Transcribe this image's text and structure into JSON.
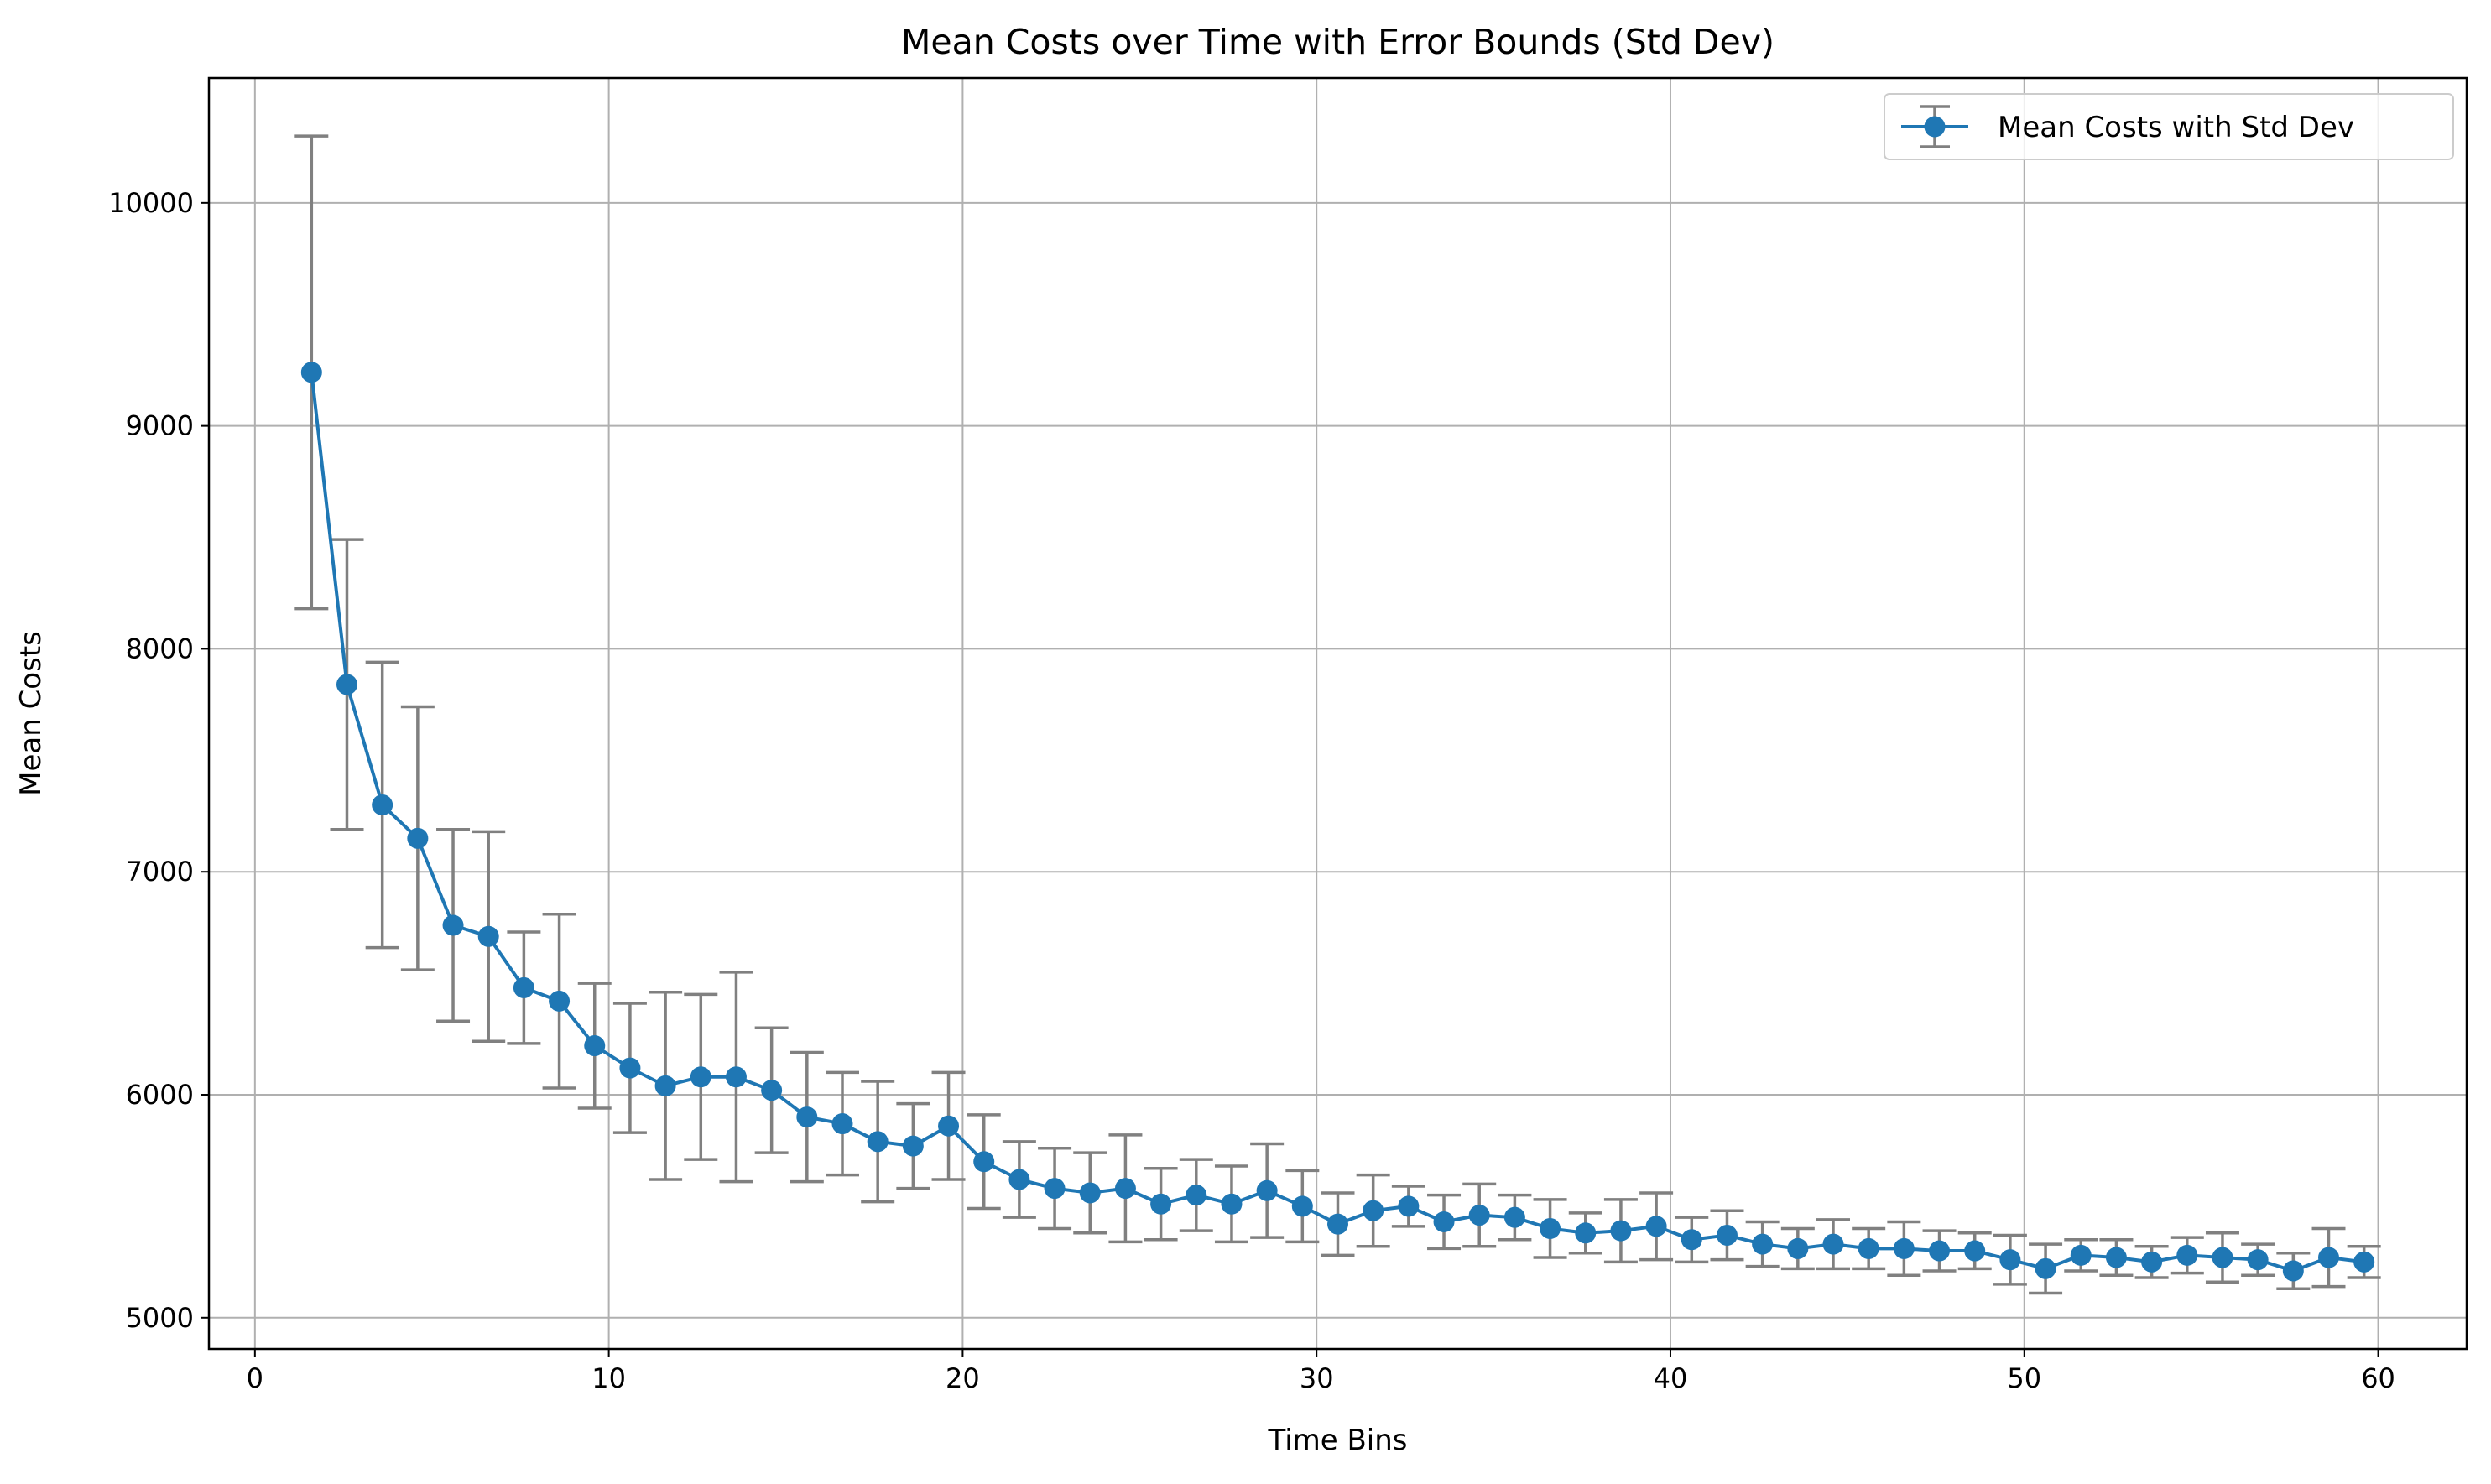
{
  "chart_data": {
    "type": "line",
    "title": "Mean Costs over Time with Error Bounds (Std Dev)",
    "xlabel": "Time Bins",
    "ylabel": "Mean Costs",
    "xlim": [
      -1.3,
      62.5
    ],
    "ylim": [
      4860,
      10560
    ],
    "xticks": [
      0,
      10,
      20,
      30,
      40,
      50,
      60
    ],
    "yticks": [
      5000,
      6000,
      7000,
      8000,
      9000,
      10000
    ],
    "grid": true,
    "legend_position": "top-right",
    "colors": {
      "line": "#1f77b4",
      "errorbar": "#808080",
      "grid": "#b0b0b0"
    },
    "series": [
      {
        "name": "Mean Costs with Std Dev",
        "x": [
          1.6,
          2.6,
          3.6,
          4.6,
          5.6,
          6.6,
          7.6,
          8.6,
          9.6,
          10.6,
          11.6,
          12.6,
          13.6,
          14.6,
          15.6,
          16.6,
          17.6,
          18.6,
          19.6,
          20.6,
          21.6,
          22.6,
          23.6,
          24.6,
          25.6,
          26.6,
          27.6,
          28.6,
          29.6,
          30.6,
          31.6,
          32.6,
          33.6,
          34.6,
          35.6,
          36.6,
          37.6,
          38.6,
          39.6,
          40.6,
          41.6,
          42.6,
          43.6,
          44.6,
          45.6,
          46.6,
          47.6,
          48.6,
          49.6,
          50.6,
          51.6,
          52.6,
          53.6,
          54.6,
          55.6,
          56.6,
          57.6,
          58.6,
          59.6
        ],
        "y": [
          9240,
          7840,
          7300,
          7150,
          6760,
          6710,
          6480,
          6420,
          6220,
          6120,
          6040,
          6080,
          6080,
          6020,
          5900,
          5870,
          5790,
          5770,
          5860,
          5700,
          5620,
          5580,
          5560,
          5580,
          5510,
          5550,
          5510,
          5570,
          5500,
          5420,
          5480,
          5500,
          5430,
          5460,
          5450,
          5400,
          5380,
          5390,
          5410,
          5350,
          5370,
          5330,
          5310,
          5330,
          5310,
          5310,
          5300,
          5300,
          5260,
          5220,
          5280,
          5270,
          5250,
          5280,
          5270,
          5260,
          5210,
          5270,
          5250
        ],
        "std": [
          1060,
          650,
          640,
          590,
          430,
          470,
          250,
          390,
          280,
          290,
          420,
          370,
          470,
          280,
          290,
          230,
          270,
          190,
          240,
          210,
          170,
          180,
          180,
          240,
          160,
          160,
          170,
          210,
          160,
          140,
          160,
          90,
          120,
          140,
          100,
          130,
          90,
          140,
          150,
          100,
          110,
          100,
          90,
          110,
          90,
          120,
          90,
          80,
          110,
          110,
          70,
          80,
          70,
          80,
          110,
          70,
          80,
          130,
          70
        ]
      }
    ]
  }
}
